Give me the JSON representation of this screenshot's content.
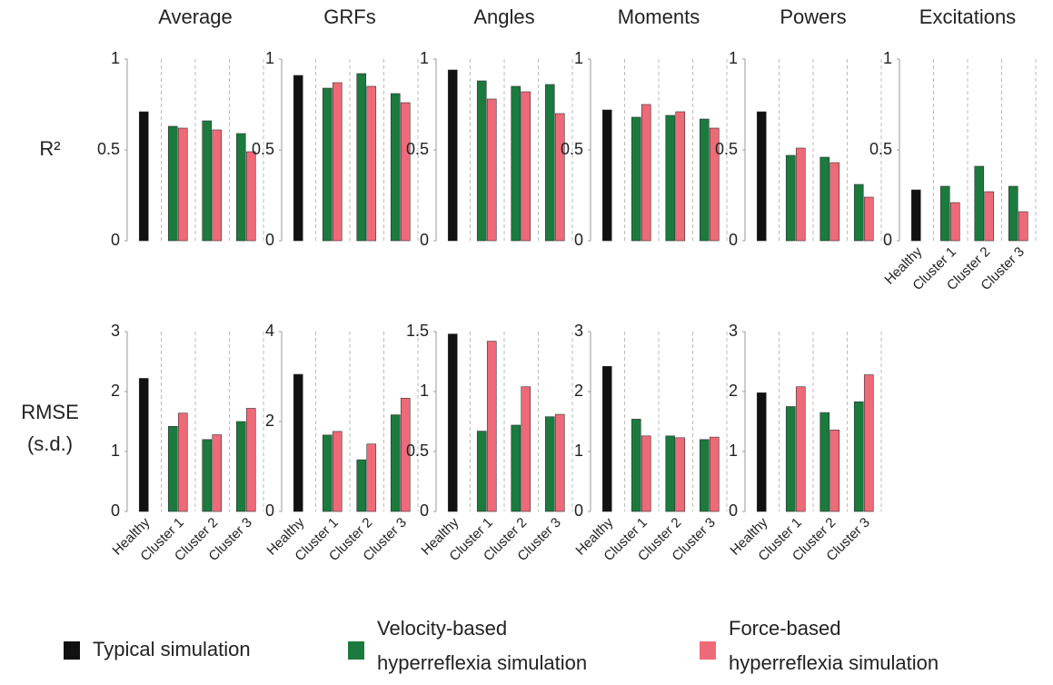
{
  "row_labels": {
    "r2": "R²",
    "rmse": [
      "RMSE",
      "(s.d.)"
    ]
  },
  "legend": [
    {
      "label": [
        "Typical simulation"
      ],
      "color": "#111111"
    },
    {
      "label": [
        "Velocity-based",
        "hyperreflexia simulation"
      ],
      "color": "#1b7a3e"
    },
    {
      "label": [
        "Force-based",
        "hyperreflexia simulation"
      ],
      "color": "#ef6a78"
    }
  ],
  "chart_data": [
    {
      "type": "bar",
      "title": "Average",
      "ylim": [
        0,
        1
      ],
      "yticks": [
        0,
        0.5,
        1
      ],
      "series": [
        {
          "values": [
            0.71,
            null,
            null,
            null
          ]
        },
        {
          "values": [
            null,
            0.63,
            0.66,
            0.59
          ]
        },
        {
          "values": [
            null,
            0.62,
            0.61,
            0.49
          ]
        }
      ]
    },
    {
      "type": "bar",
      "title": "GRFs",
      "ylim": [
        0,
        1
      ],
      "yticks": [
        0,
        0.5,
        1
      ],
      "series": [
        {
          "values": [
            0.91,
            null,
            null,
            null
          ]
        },
        {
          "values": [
            null,
            0.84,
            0.92,
            0.81
          ]
        },
        {
          "values": [
            null,
            0.87,
            0.85,
            0.76
          ]
        }
      ]
    },
    {
      "type": "bar",
      "title": "Angles",
      "ylim": [
        0,
        1
      ],
      "yticks": [
        0,
        0.5,
        1
      ],
      "series": [
        {
          "values": [
            0.94,
            null,
            null,
            null
          ]
        },
        {
          "values": [
            null,
            0.88,
            0.85,
            0.86
          ]
        },
        {
          "values": [
            null,
            0.78,
            0.82,
            0.7
          ]
        }
      ]
    },
    {
      "type": "bar",
      "title": "Moments",
      "ylim": [
        0,
        1
      ],
      "yticks": [
        0,
        0.5,
        1
      ],
      "series": [
        {
          "values": [
            0.72,
            null,
            null,
            null
          ]
        },
        {
          "values": [
            null,
            0.68,
            0.69,
            0.67
          ]
        },
        {
          "values": [
            null,
            0.75,
            0.71,
            0.62
          ]
        }
      ]
    },
    {
      "type": "bar",
      "title": "Powers",
      "ylim": [
        0,
        1
      ],
      "yticks": [
        0,
        0.5,
        1
      ],
      "series": [
        {
          "values": [
            0.71,
            null,
            null,
            null
          ]
        },
        {
          "values": [
            null,
            0.47,
            0.46,
            0.31
          ]
        },
        {
          "values": [
            null,
            0.51,
            0.43,
            0.24
          ]
        }
      ]
    },
    {
      "type": "bar",
      "title": "Excitations",
      "ylim": [
        0,
        1
      ],
      "yticks": [
        0,
        0.5,
        1
      ],
      "categories": [
        "Healthy",
        "Cluster 1",
        "Cluster 2",
        "Cluster 3"
      ],
      "series": [
        {
          "values": [
            0.28,
            null,
            null,
            null
          ]
        },
        {
          "values": [
            null,
            0.3,
            0.41,
            0.3
          ]
        },
        {
          "values": [
            null,
            0.21,
            0.27,
            0.16
          ]
        }
      ]
    },
    {
      "type": "bar",
      "ylim": [
        0,
        3
      ],
      "yticks": [
        0,
        1,
        2,
        3
      ],
      "categories": [
        "Healthy",
        "Cluster 1",
        "Cluster 2",
        "Cluster 3"
      ],
      "series": [
        {
          "values": [
            2.22,
            null,
            null,
            null
          ]
        },
        {
          "values": [
            null,
            1.42,
            1.2,
            1.5
          ]
        },
        {
          "values": [
            null,
            1.64,
            1.28,
            1.72
          ]
        }
      ]
    },
    {
      "type": "bar",
      "ylim": [
        0,
        4
      ],
      "yticks": [
        0,
        2,
        4
      ],
      "categories": [
        "Healthy",
        "Cluster 1",
        "Cluster 2",
        "Cluster 3"
      ],
      "series": [
        {
          "values": [
            3.05,
            null,
            null,
            null
          ]
        },
        {
          "values": [
            null,
            1.7,
            1.15,
            2.15
          ]
        },
        {
          "values": [
            null,
            1.78,
            1.5,
            2.52
          ]
        }
      ]
    },
    {
      "type": "bar",
      "ylim": [
        0,
        1.5
      ],
      "yticks": [
        0,
        0.5,
        1,
        1.5
      ],
      "categories": [
        "Healthy",
        "Cluster 1",
        "Cluster 2",
        "Cluster 3"
      ],
      "series": [
        {
          "values": [
            1.48,
            null,
            null,
            null
          ]
        },
        {
          "values": [
            null,
            0.67,
            0.72,
            0.79
          ]
        },
        {
          "values": [
            null,
            1.42,
            1.04,
            0.81
          ]
        }
      ]
    },
    {
      "type": "bar",
      "ylim": [
        0,
        3
      ],
      "yticks": [
        0,
        1,
        2,
        3
      ],
      "categories": [
        "Healthy",
        "Cluster 1",
        "Cluster 2",
        "Cluster 3"
      ],
      "series": [
        {
          "values": [
            2.42,
            null,
            null,
            null
          ]
        },
        {
          "values": [
            null,
            1.54,
            1.26,
            1.2
          ]
        },
        {
          "values": [
            null,
            1.26,
            1.23,
            1.24
          ]
        }
      ]
    },
    {
      "type": "bar",
      "ylim": [
        0,
        3
      ],
      "yticks": [
        0,
        1,
        2,
        3
      ],
      "categories": [
        "Healthy",
        "Cluster 1",
        "Cluster 2",
        "Cluster 3"
      ],
      "series": [
        {
          "values": [
            1.98,
            null,
            null,
            null
          ]
        },
        {
          "values": [
            null,
            1.75,
            1.65,
            1.83
          ]
        },
        {
          "values": [
            null,
            2.08,
            1.36,
            2.28
          ]
        }
      ]
    }
  ]
}
